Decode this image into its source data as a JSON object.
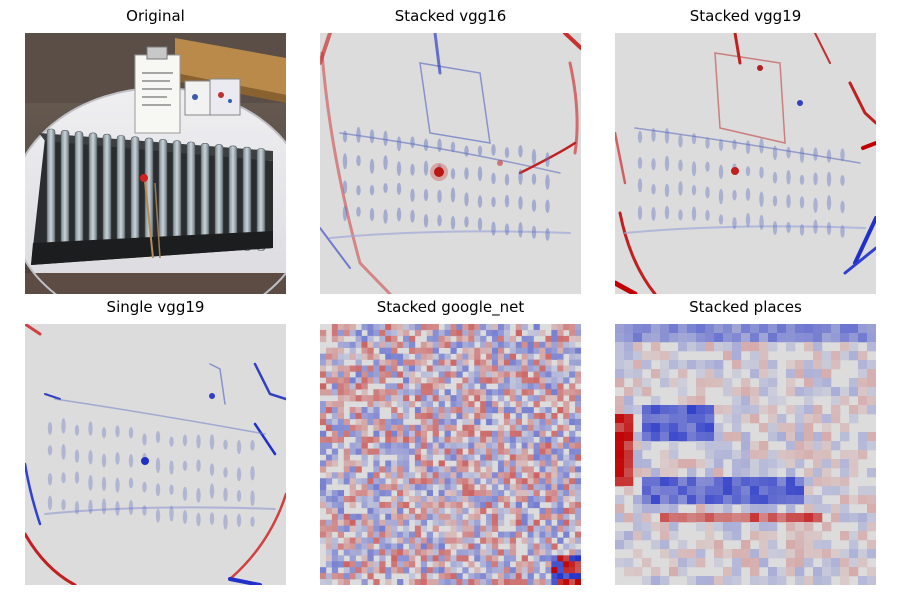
{
  "panels": [
    {
      "title": "Original",
      "kind": "photo"
    },
    {
      "title": "Stacked vgg16",
      "kind": "smooth-saliency"
    },
    {
      "title": "Stacked vgg19",
      "kind": "smooth-saliency"
    },
    {
      "title": "Single vgg19",
      "kind": "smooth-saliency"
    },
    {
      "title": "Stacked google_net",
      "kind": "noisy-grid"
    },
    {
      "title": "Stacked places",
      "kind": "blocky-grid"
    }
  ],
  "colors": {
    "background": "#dcdcdc",
    "positive": "#c00000",
    "negative": "#2030c8"
  }
}
